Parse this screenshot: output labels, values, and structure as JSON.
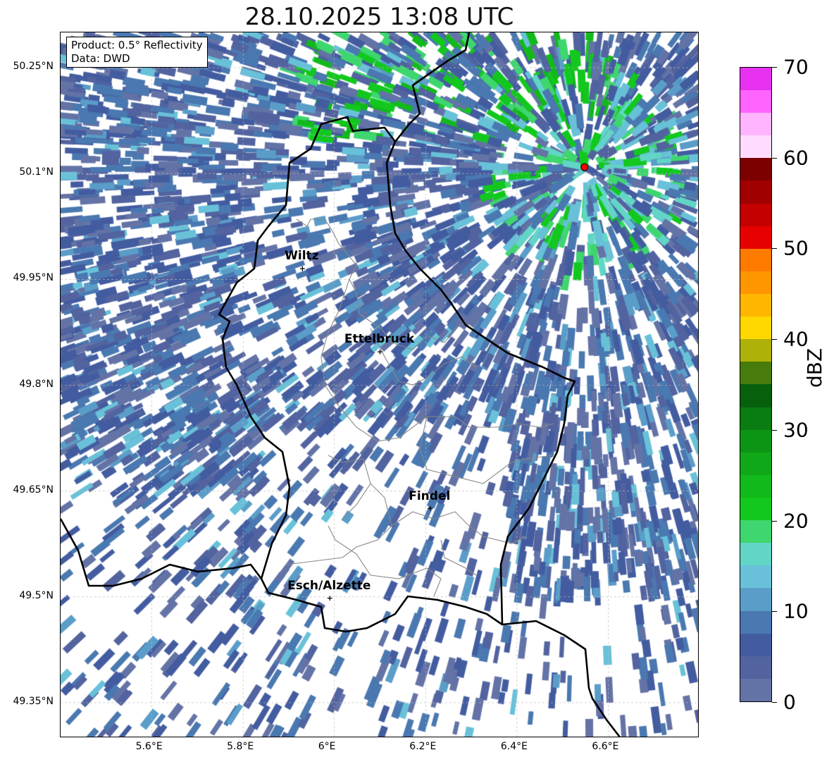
{
  "title": "28.10.2025 13:08 UTC",
  "info": {
    "product": "Product: 0.5° Reflectivity",
    "data": "Data: DWD"
  },
  "map": {
    "lon_range": [
      5.4,
      6.8
    ],
    "lat_range": [
      49.3,
      50.3
    ],
    "lon_ticks": [
      {
        "v": 5.6,
        "label": "5.6°E"
      },
      {
        "v": 5.8,
        "label": "5.8°E"
      },
      {
        "v": 6.0,
        "label": "6°E"
      },
      {
        "v": 6.2,
        "label": "6.2°E"
      },
      {
        "v": 6.4,
        "label": "6.4°E"
      },
      {
        "v": 6.6,
        "label": "6.6°E"
      }
    ],
    "lat_ticks": [
      {
        "v": 50.25,
        "label": "50.25°N"
      },
      {
        "v": 50.1,
        "label": "50.1°N"
      },
      {
        "v": 49.95,
        "label": "49.95°N"
      },
      {
        "v": 49.8,
        "label": "49.8°N"
      },
      {
        "v": 49.65,
        "label": "49.65°N"
      },
      {
        "v": 49.5,
        "label": "49.5°N"
      },
      {
        "v": 49.35,
        "label": "49.35°N"
      }
    ],
    "cities": [
      {
        "name": "Wiltz",
        "lon": 5.93,
        "lat": 49.966
      },
      {
        "name": "Ettelbruck",
        "lon": 6.1,
        "lat": 49.848
      },
      {
        "name": "Findel",
        "lon": 6.21,
        "lat": 49.626
      },
      {
        "name": "Esch/Alzette",
        "lon": 5.99,
        "lat": 49.499
      }
    ],
    "radar_site": {
      "lon": 6.548,
      "lat": 50.109,
      "color": "#ff0000"
    }
  },
  "colorbar": {
    "label": "dBZ",
    "min": 0,
    "max": 70,
    "ticks": [
      {
        "v": 0,
        "label": "0"
      },
      {
        "v": 10,
        "label": "10"
      },
      {
        "v": 20,
        "label": "20"
      },
      {
        "v": 30,
        "label": "30"
      },
      {
        "v": 40,
        "label": "40"
      },
      {
        "v": 50,
        "label": "50"
      },
      {
        "v": 60,
        "label": "60"
      },
      {
        "v": 70,
        "label": "70"
      }
    ],
    "colors": [
      "#6473a6",
      "#52639f",
      "#435ca0",
      "#4a78b0",
      "#5a9dc8",
      "#68c1d8",
      "#62d6c6",
      "#3ed66e",
      "#12c81e",
      "#12b91a",
      "#10a818",
      "#0c9515",
      "#0a7d12",
      "#07600c",
      "#477b0b",
      "#aeb107",
      "#ffd800",
      "#ffb600",
      "#ff9600",
      "#ff7b00",
      "#e60000",
      "#c40000",
      "#a00000",
      "#7c0000",
      "#ffdcff",
      "#ffb4ff",
      "#ff64ff",
      "#e632f0"
    ]
  }
}
